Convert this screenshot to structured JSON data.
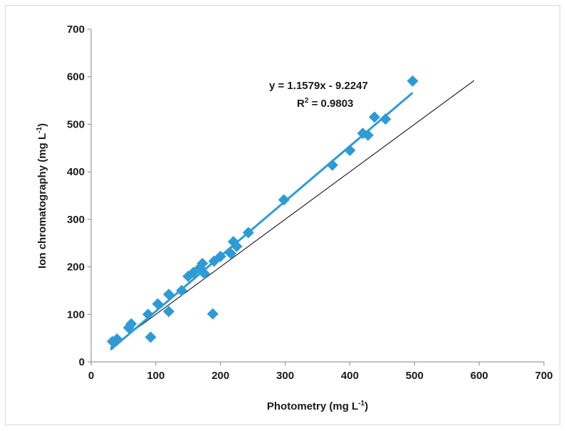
{
  "chart_data": {
    "type": "scatter",
    "xlabel_main": "Photometry (mg L",
    "xlabel_sup": "-1",
    "xlabel_end": ")",
    "ylabel_main": "Ion chromatography (mg L",
    "ylabel_sup": "-1",
    "ylabel_end": ")",
    "xlim": [
      0,
      700
    ],
    "ylim": [
      0,
      700
    ],
    "x_ticks": [
      0,
      100,
      200,
      300,
      400,
      500,
      600,
      700
    ],
    "y_ticks": [
      0,
      100,
      200,
      300,
      400,
      500,
      600,
      700
    ],
    "grid": false,
    "legend": "none",
    "marker_color": "#2e9bd6",
    "trendline_color": "#2e9bd6",
    "identity_line_color": "#000000",
    "series": [
      {
        "marker": "diamond",
        "points": [
          [
            33,
            43
          ],
          [
            40,
            48
          ],
          [
            58,
            72
          ],
          [
            62,
            80
          ],
          [
            88,
            100
          ],
          [
            92,
            52
          ],
          [
            103,
            122
          ],
          [
            120,
            106
          ],
          [
            120,
            142
          ],
          [
            140,
            150
          ],
          [
            150,
            180
          ],
          [
            158,
            188
          ],
          [
            168,
            198
          ],
          [
            172,
            207
          ],
          [
            175,
            186
          ],
          [
            188,
            101
          ],
          [
            190,
            212
          ],
          [
            200,
            222
          ],
          [
            216,
            228
          ],
          [
            220,
            253
          ],
          [
            225,
            243
          ],
          [
            243,
            272
          ],
          [
            298,
            341
          ],
          [
            373,
            414
          ],
          [
            400,
            445
          ],
          [
            420,
            481
          ],
          [
            428,
            477
          ],
          [
            438,
            515
          ],
          [
            455,
            511
          ],
          [
            497,
            591
          ]
        ]
      }
    ],
    "trendline": {
      "slope": 1.1579,
      "intercept": -9.2247,
      "x_range": [
        30,
        497
      ],
      "equation_label": "y = 1.1579x - 9.2247",
      "r2_prefix": "R",
      "r2_sup": "2",
      "r2_value": " = 0.9803"
    },
    "identity_line": {
      "x_range": [
        30,
        592
      ]
    }
  }
}
